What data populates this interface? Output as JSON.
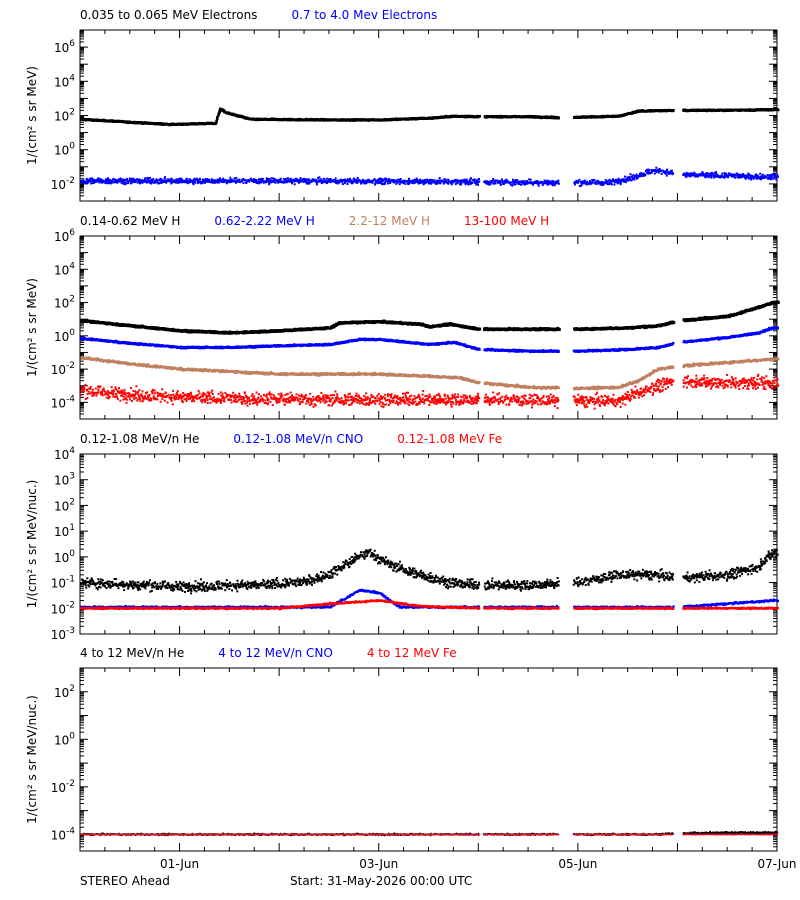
{
  "colors": {
    "black": "#000000",
    "blue": "#0000ff",
    "tan": "#c08060",
    "red": "#ff0000"
  },
  "chart_data": [
    {
      "type": "scatter",
      "ylabel": "1/(cm² s sr MeV)",
      "yscale": "log",
      "ylim": [
        0.001,
        10000000
      ],
      "ytick_labels": [
        {
          "exp": "-2",
          "val": 0.01
        },
        {
          "exp": "0",
          "val": 1
        },
        {
          "exp": "2",
          "val": 100
        },
        {
          "exp": "4",
          "val": 10000
        },
        {
          "exp": "6",
          "val": 1000000
        }
      ],
      "legend": [
        {
          "label": "0.035 to 0.065 MeV Electrons",
          "color": "black"
        },
        {
          "label": "0.7 to 4.0 Mev Electrons",
          "color": "blue"
        }
      ],
      "series": [
        {
          "name": "0.035 to 0.065 MeV Electrons",
          "color": "black",
          "width": 2.6,
          "jitter": 0.04,
          "noise": 0.03,
          "points": [
            [
              0.0,
              60
            ],
            [
              0.5,
              40
            ],
            [
              0.9,
              30
            ],
            [
              1.35,
              35
            ],
            [
              1.4,
              250
            ],
            [
              1.45,
              150
            ],
            [
              1.7,
              60
            ],
            [
              2.5,
              55
            ],
            [
              3.0,
              55
            ],
            [
              3.5,
              70
            ],
            [
              3.75,
              90
            ],
            [
              4.0,
              85
            ],
            [
              4.5,
              85
            ],
            [
              4.8,
              75
            ],
            [
              5.2,
              85
            ],
            [
              5.4,
              90
            ],
            [
              5.6,
              180
            ],
            [
              6.0,
              200
            ],
            [
              6.5,
              200
            ],
            [
              6.95,
              220
            ]
          ]
        },
        {
          "name": "0.7 to 4.0 Mev Electrons",
          "color": "blue",
          "width": 2.0,
          "jitter": 0.22,
          "noise": 0.08,
          "points": [
            [
              0.0,
              0.015
            ],
            [
              2.0,
              0.015
            ],
            [
              3.5,
              0.014
            ],
            [
              4.0,
              0.013
            ],
            [
              4.8,
              0.012
            ],
            [
              5.3,
              0.012
            ],
            [
              5.5,
              0.02
            ],
            [
              5.7,
              0.05
            ],
            [
              5.8,
              0.06
            ],
            [
              6.0,
              0.035
            ],
            [
              6.5,
              0.03
            ],
            [
              6.95,
              0.025
            ]
          ]
        }
      ]
    },
    {
      "type": "scatter",
      "ylabel": "1/(cm² s sr MeV)",
      "yscale": "log",
      "ylim": [
        1e-05,
        1000000
      ],
      "ytick_labels": [
        {
          "exp": "-4",
          "val": 0.0001
        },
        {
          "exp": "-2",
          "val": 0.01
        },
        {
          "exp": "0",
          "val": 1
        },
        {
          "exp": "2",
          "val": 100
        },
        {
          "exp": "4",
          "val": 10000
        },
        {
          "exp": "6",
          "val": 1000000
        }
      ],
      "legend": [
        {
          "label": "0.14-0.62 MeV H",
          "color": "black"
        },
        {
          "label": "0.62-2.22 MeV H",
          "color": "blue"
        },
        {
          "label": "2.2-12 MeV H",
          "color": "tan"
        },
        {
          "label": "13-100 MeV H",
          "color": "red"
        }
      ],
      "series": [
        {
          "name": "0.14-0.62 MeV H",
          "color": "black",
          "width": 2.8,
          "jitter": 0.05,
          "noise": 0.05,
          "points": [
            [
              0.0,
              8
            ],
            [
              0.5,
              4
            ],
            [
              1.0,
              2
            ],
            [
              1.5,
              1.5
            ],
            [
              2.0,
              2
            ],
            [
              2.5,
              3
            ],
            [
              2.6,
              6
            ],
            [
              3.0,
              7
            ],
            [
              3.4,
              5
            ],
            [
              3.5,
              3.5
            ],
            [
              3.7,
              5
            ],
            [
              4.0,
              2.5
            ],
            [
              4.5,
              2.5
            ],
            [
              5.0,
              2.5
            ],
            [
              5.5,
              3
            ],
            [
              5.8,
              4
            ],
            [
              6.0,
              8
            ],
            [
              6.5,
              15
            ],
            [
              6.8,
              50
            ],
            [
              6.95,
              100
            ]
          ]
        },
        {
          "name": "0.62-2.22 MeV H",
          "color": "blue",
          "width": 2.4,
          "jitter": 0.05,
          "noise": 0.05,
          "points": [
            [
              0.0,
              0.7
            ],
            [
              0.5,
              0.35
            ],
            [
              1.0,
              0.2
            ],
            [
              1.5,
              0.2
            ],
            [
              2.0,
              0.25
            ],
            [
              2.5,
              0.3
            ],
            [
              2.8,
              0.6
            ],
            [
              3.0,
              0.6
            ],
            [
              3.5,
              0.3
            ],
            [
              3.75,
              0.4
            ],
            [
              4.0,
              0.15
            ],
            [
              4.5,
              0.12
            ],
            [
              5.0,
              0.12
            ],
            [
              5.5,
              0.15
            ],
            [
              5.8,
              0.2
            ],
            [
              6.0,
              0.4
            ],
            [
              6.5,
              0.8
            ],
            [
              6.8,
              1.5
            ],
            [
              6.95,
              3
            ]
          ]
        },
        {
          "name": "2.2-12 MeV H",
          "color": "tan",
          "width": 2.2,
          "jitter": 0.08,
          "noise": 0.07,
          "points": [
            [
              0.0,
              0.05
            ],
            [
              0.5,
              0.02
            ],
            [
              1.0,
              0.01
            ],
            [
              1.5,
              0.007
            ],
            [
              2.0,
              0.005
            ],
            [
              3.0,
              0.005
            ],
            [
              3.8,
              0.003
            ],
            [
              4.0,
              0.0015
            ],
            [
              4.5,
              0.0008
            ],
            [
              5.0,
              0.0007
            ],
            [
              5.4,
              0.0008
            ],
            [
              5.6,
              0.002
            ],
            [
              5.8,
              0.01
            ],
            [
              6.0,
              0.015
            ],
            [
              6.5,
              0.025
            ],
            [
              6.95,
              0.04
            ]
          ]
        },
        {
          "name": "13-100 MeV H",
          "color": "red",
          "width": 2.0,
          "jitter": 0.5,
          "noise": 0.2,
          "points": [
            [
              0.0,
              0.0005
            ],
            [
              0.5,
              0.0003
            ],
            [
              1.0,
              0.0002
            ],
            [
              2.0,
              0.00015
            ],
            [
              3.0,
              0.00015
            ],
            [
              4.0,
              0.00015
            ],
            [
              5.0,
              0.00012
            ],
            [
              5.4,
              0.00012
            ],
            [
              5.6,
              0.0004
            ],
            [
              5.8,
              0.001
            ],
            [
              6.0,
              0.002
            ],
            [
              6.5,
              0.0015
            ],
            [
              6.95,
              0.0015
            ]
          ]
        }
      ]
    },
    {
      "type": "scatter",
      "ylabel": "1/(cm² s sr MeV/nuc.)",
      "yscale": "log",
      "ylim": [
        0.001,
        10000
      ],
      "ytick_labels": [
        {
          "exp": "-3",
          "val": 0.001
        },
        {
          "exp": "-2",
          "val": 0.01
        },
        {
          "exp": "-1",
          "val": 0.1
        },
        {
          "exp": "0",
          "val": 1
        },
        {
          "exp": "1",
          "val": 10
        },
        {
          "exp": "2",
          "val": 100
        },
        {
          "exp": "3",
          "val": 1000
        },
        {
          "exp": "4",
          "val": 10000
        }
      ],
      "legend": [
        {
          "label": "0.12-1.08 MeV/n He",
          "color": "black"
        },
        {
          "label": "0.12-1.08 MeV/n CNO",
          "color": "blue"
        },
        {
          "label": "0.12-1.08 MeV Fe",
          "color": "red"
        }
      ],
      "series": [
        {
          "name": "0.12-1.08 MeV/n He",
          "color": "black",
          "width": 2.0,
          "jitter": 0.25,
          "noise": 0.12,
          "points": [
            [
              0.0,
              0.1
            ],
            [
              1.0,
              0.07
            ],
            [
              1.8,
              0.08
            ],
            [
              2.2,
              0.1
            ],
            [
              2.5,
              0.2
            ],
            [
              2.75,
              0.8
            ],
            [
              2.9,
              1.5
            ],
            [
              3.1,
              0.5
            ],
            [
              3.4,
              0.2
            ],
            [
              3.7,
              0.1
            ],
            [
              4.0,
              0.08
            ],
            [
              4.5,
              0.08
            ],
            [
              5.0,
              0.1
            ],
            [
              5.4,
              0.2
            ],
            [
              5.75,
              0.2
            ],
            [
              6.0,
              0.15
            ],
            [
              6.5,
              0.2
            ],
            [
              6.8,
              0.4
            ],
            [
              6.95,
              1.5
            ]
          ]
        },
        {
          "name": "0.12-1.08 MeV/n CNO",
          "color": "blue",
          "width": 2.0,
          "jitter": 0.05,
          "noise": 0.02,
          "points": [
            [
              0.0,
              0.011
            ],
            [
              2.5,
              0.011
            ],
            [
              2.8,
              0.05
            ],
            [
              3.0,
              0.04
            ],
            [
              3.2,
              0.011
            ],
            [
              5.75,
              0.011
            ],
            [
              6.0,
              0.011
            ],
            [
              6.95,
              0.02
            ]
          ]
        },
        {
          "name": "0.12-1.08 MeV Fe",
          "color": "red",
          "width": 2.0,
          "jitter": 0.04,
          "noise": 0.02,
          "points": [
            [
              0.0,
              0.01
            ],
            [
              2.0,
              0.01
            ],
            [
              2.5,
              0.015
            ],
            [
              3.0,
              0.02
            ],
            [
              3.4,
              0.012
            ],
            [
              4.0,
              0.01
            ],
            [
              6.95,
              0.01
            ]
          ]
        }
      ]
    },
    {
      "type": "scatter",
      "ylabel": "1/(cm² s sr MeV/nuc.)",
      "yscale": "log",
      "ylim": [
        2e-05,
        1000
      ],
      "ytick_labels": [
        {
          "exp": "-4",
          "val": 0.0001
        },
        {
          "exp": "-2",
          "val": 0.01
        },
        {
          "exp": "0",
          "val": 1
        },
        {
          "exp": "2",
          "val": 100
        }
      ],
      "legend": [
        {
          "label": "4 to 12 MeV/n He",
          "color": "black"
        },
        {
          "label": "4 to 12 MeV/n CNO",
          "color": "blue"
        },
        {
          "label": "4 to 12 MeV Fe",
          "color": "red"
        }
      ],
      "series": [
        {
          "name": "4 to 12 MeV/n He",
          "color": "black",
          "width": 1.5,
          "jitter": 0.05,
          "noise": 0.02,
          "points": [
            [
              0.0,
              0.0001
            ],
            [
              5.75,
              0.0001
            ],
            [
              6.0,
              0.00011
            ],
            [
              6.5,
              0.00012
            ],
            [
              6.95,
              0.00012
            ]
          ]
        },
        {
          "name": "4 to 12 MeV/n CNO",
          "color": "blue",
          "width": 1.2,
          "jitter": 0.02,
          "noise": 0.01,
          "points": [
            [
              5.9,
              0.0001
            ],
            [
              6.95,
              0.0001
            ]
          ]
        },
        {
          "name": "4 to 12 MeV Fe",
          "color": "red",
          "width": 1.2,
          "jitter": 0.02,
          "noise": 0.01,
          "points": [
            [
              6.0,
              0.0001
            ],
            [
              6.95,
              0.0001
            ]
          ]
        }
      ]
    }
  ],
  "x_axis": {
    "range_days": [
      0,
      7
    ],
    "tick_labels": [
      {
        "day": 1,
        "label": "01-Jun"
      },
      {
        "day": 3,
        "label": "03-Jun"
      },
      {
        "day": 5,
        "label": "05-Jun"
      },
      {
        "day": 7,
        "label": "07-Jun"
      }
    ],
    "data_gaps": [
      [
        4.0,
        4.05
      ],
      [
        4.8,
        4.95
      ],
      [
        5.95,
        6.05
      ]
    ]
  },
  "footer": {
    "spacecraft": "STEREO Ahead",
    "start": "Start: 31-May-2026 00:00 UTC"
  }
}
